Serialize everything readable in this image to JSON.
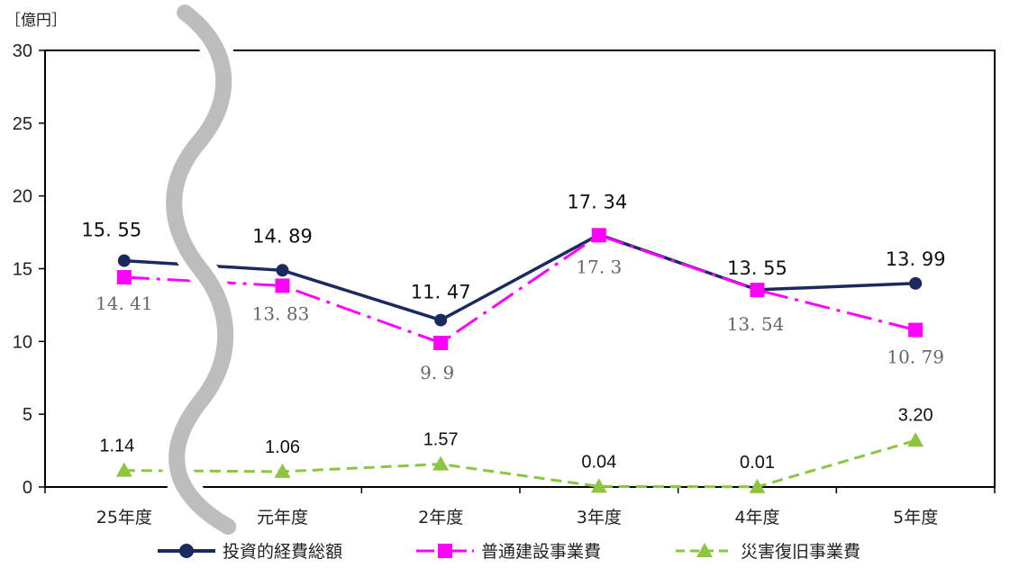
{
  "chart_data": {
    "type": "line",
    "title": "",
    "unit_label": "［億円］",
    "categories": [
      "25年度",
      "元年度",
      "2年度",
      "3年度",
      "4年度",
      "5年度"
    ],
    "ylim": [
      0,
      30
    ],
    "yticks": [
      0,
      5,
      10,
      15,
      20,
      25,
      30
    ],
    "grid": false,
    "legend_position": "bottom",
    "axis_break": "between 25年度 and 元年度",
    "series": [
      {
        "name": "投資的経費総額",
        "style": "solid",
        "marker": "circle",
        "color": "#1b2a5e",
        "values": [
          15.55,
          14.89,
          11.47,
          17.34,
          13.55,
          13.99
        ],
        "labels": [
          "15. 55",
          "14. 89",
          "11. 47",
          "17. 34",
          "13. 55",
          "13. 99"
        ]
      },
      {
        "name": "普通建設事業費",
        "style": "dash-dot",
        "marker": "square",
        "color": "#ff00ff",
        "values": [
          14.41,
          13.83,
          9.9,
          17.3,
          13.54,
          10.79
        ],
        "labels": [
          "14. 41",
          "13. 83",
          "9. 9",
          "17. 3",
          "13. 54",
          "10. 79"
        ]
      },
      {
        "name": "災害復旧事業費",
        "style": "dashed",
        "marker": "triangle",
        "color": "#8cc63f",
        "values": [
          1.14,
          1.06,
          1.57,
          0.04,
          0.01,
          3.2
        ],
        "labels": [
          "1.14",
          "1.06",
          "1.57",
          "0.04",
          "0.01",
          "3.20"
        ]
      }
    ]
  }
}
